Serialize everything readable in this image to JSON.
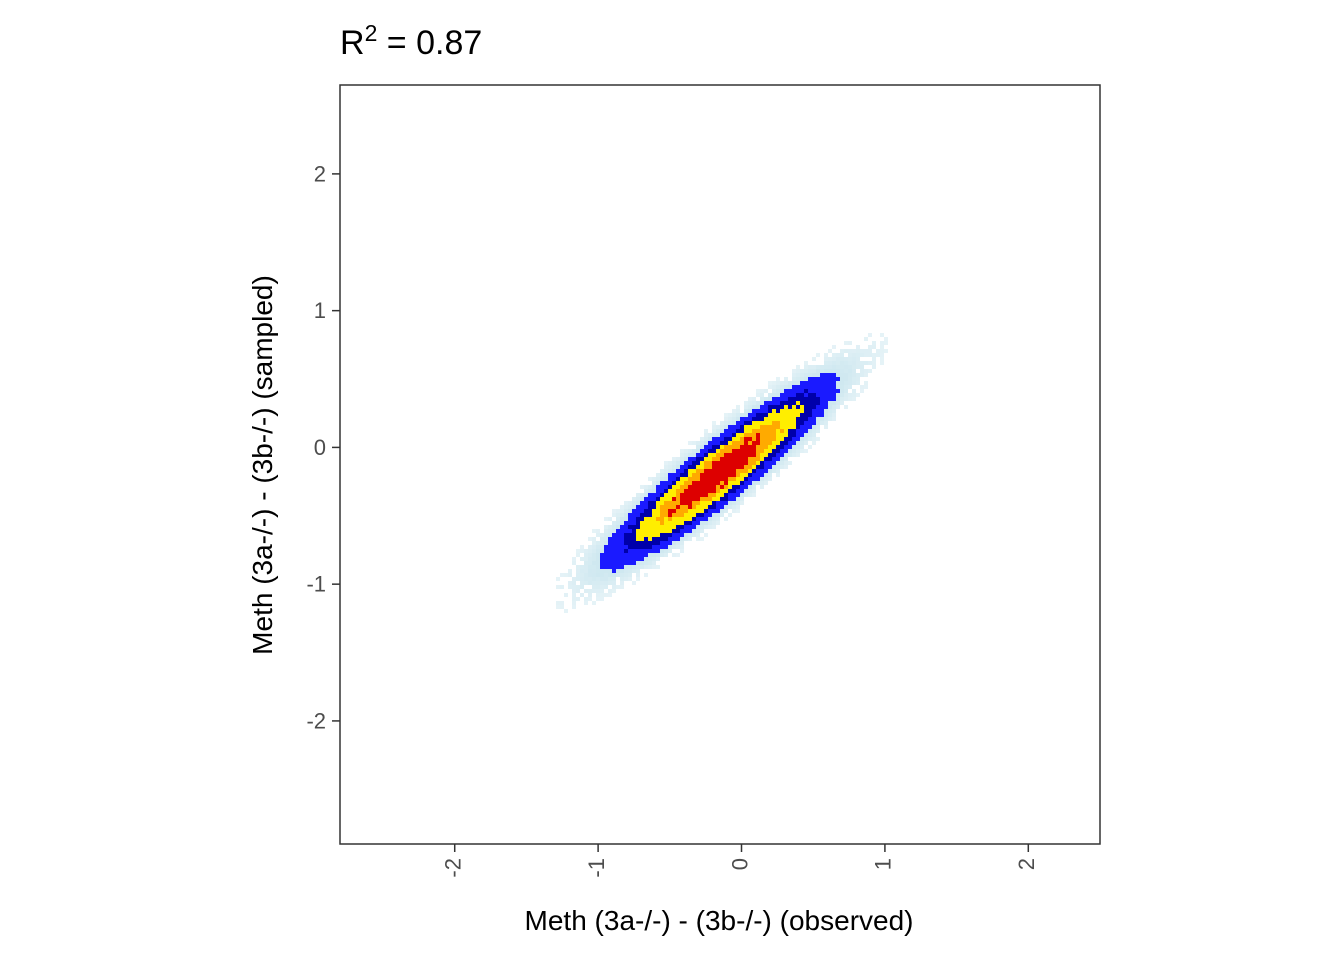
{
  "chart_data": {
    "type": "heatmap",
    "subtype": "2d-density-scatter",
    "title": {
      "base": "R",
      "superscript": "2",
      "rest": " = 0.87"
    },
    "xlabel": "Meth (3a-/-) - (3b-/-) (observed)",
    "ylabel": "Meth (3a-/-) - (3b-/-) (sampled)",
    "xlim": [
      -2.8,
      2.5
    ],
    "ylim": [
      -2.9,
      2.65
    ],
    "x_ticks": [
      -2,
      -1,
      0,
      1,
      2
    ],
    "x_tick_labels": [
      "-2",
      "-1",
      "0",
      "1",
      "2"
    ],
    "y_ticks": [
      2,
      1,
      0,
      -1,
      -2
    ],
    "y_tick_labels": [
      "2",
      "1",
      "0",
      "-1",
      "-2"
    ],
    "x_tick_label_rotation_deg": -90,
    "grid": false,
    "density": {
      "center": [
        -0.15,
        -0.18
      ],
      "r_squared": 0.87,
      "slope": 0.85,
      "sd_x": 0.6,
      "sd_y": 0.55
    },
    "colorscale": [
      "#ffffff",
      "#cfe8f0",
      "#1a1aff",
      "#0000aa",
      "#ffee00",
      "#ffaa00",
      "#dd0000"
    ]
  }
}
